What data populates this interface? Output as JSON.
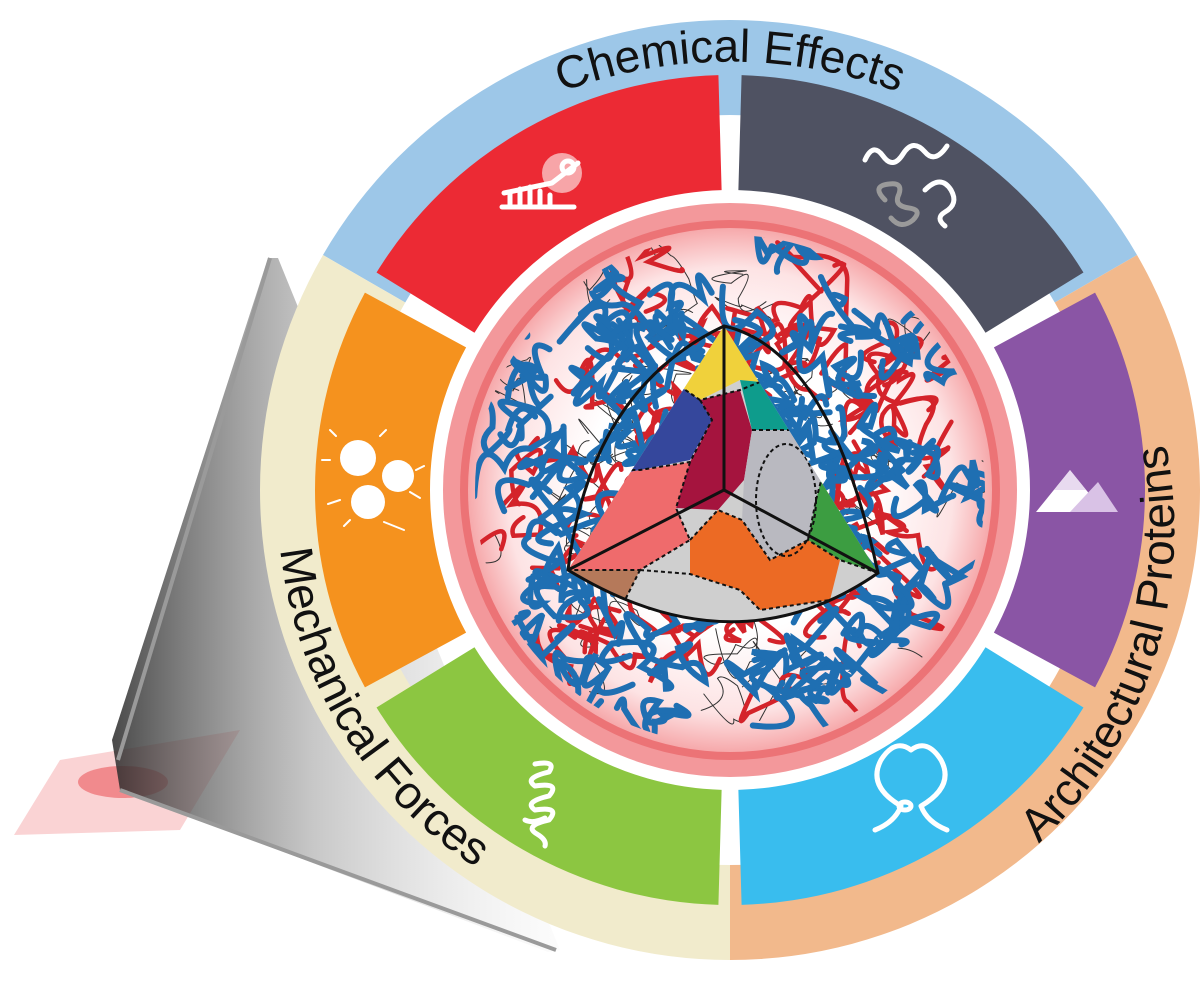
{
  "diagram": {
    "center_label": "",
    "categories": [
      {
        "id": "chemical",
        "label": "Chemical Effects",
        "ring_color": "#9dc7e8"
      },
      {
        "id": "architectural",
        "label": "Architectural Proteins",
        "ring_color": "#f2b98c"
      },
      {
        "id": "mechanical",
        "label": "Mechanical Forces",
        "ring_color": "#f1ebcc"
      }
    ],
    "segments": [
      {
        "id": "chem-red",
        "category": "chemical",
        "color": "#ec2a34",
        "icon": "dna-scissors-icon"
      },
      {
        "id": "chem-slate",
        "category": "chemical",
        "color": "#4f5262",
        "icon": "rna-strands-icon"
      },
      {
        "id": "arch-purple",
        "category": "architectural",
        "color": "#8a55a5",
        "icon": "mountain-icon"
      },
      {
        "id": "arch-cyan",
        "category": "architectural",
        "color": "#39bdee",
        "icon": "loop-icon"
      },
      {
        "id": "mech-green",
        "category": "mechanical",
        "color": "#8cc641",
        "icon": "coil-icon"
      },
      {
        "id": "mech-orange",
        "category": "mechanical",
        "color": "#f5921e",
        "icon": "droplets-icon"
      }
    ],
    "core": {
      "fiber_colors": [
        "#1f6fb2",
        "#d4232a",
        "#333333"
      ],
      "domain_colors": [
        "#f0d13b",
        "#35479c",
        "#a5143e",
        "#0e9c8c",
        "#ef6b6c",
        "#ec6a24",
        "#3c9d41",
        "#cfcfcf",
        "#b5795a"
      ]
    }
  }
}
